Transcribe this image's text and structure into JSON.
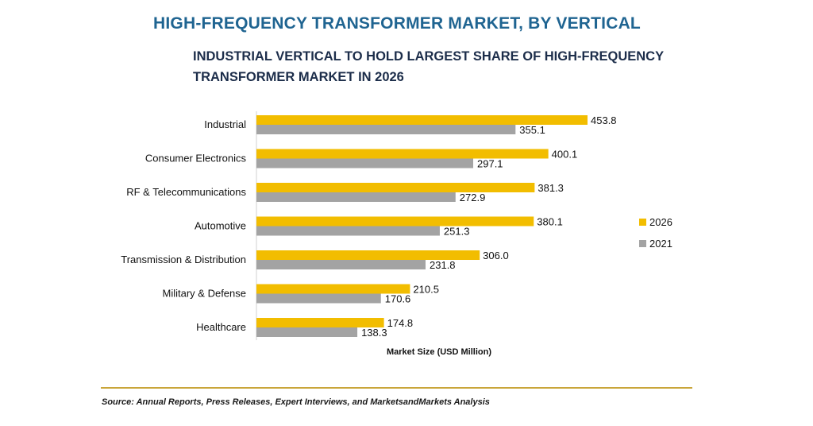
{
  "chart_data": {
    "type": "bar",
    "orientation": "horizontal",
    "title": "HIGH-FREQUENCY TRANSFORMER MARKET, BY VERTICAL",
    "subtitle_lines": [
      "INDUSTRIAL VERTICAL TO HOLD LARGEST SHARE OF HIGH-FREQUENCY",
      "TRANSFORMER MARKET IN 2026"
    ],
    "xlabel": "Market Size (USD Million)",
    "ylabel": "",
    "xlim": [
      0,
      500
    ],
    "grid": false,
    "legend_position": "right",
    "categories": [
      "Industrial",
      "Consumer Electronics",
      "RF & Telecommunications",
      "Automotive",
      "Transmission & Distribution",
      "Military & Defense",
      "Healthcare"
    ],
    "series": [
      {
        "name": "2026",
        "color": "#f2bd00",
        "values": [
          453.8,
          400.1,
          381.3,
          380.1,
          306.0,
          210.5,
          174.8
        ]
      },
      {
        "name": "2021",
        "color": "#a3a3a3",
        "values": [
          355.1,
          297.1,
          272.9,
          251.3,
          231.8,
          170.6,
          138.3
        ]
      }
    ]
  },
  "source": "Source: Annual Reports, Press Releases, Expert Interviews, and MarketsandMarkets Analysis"
}
